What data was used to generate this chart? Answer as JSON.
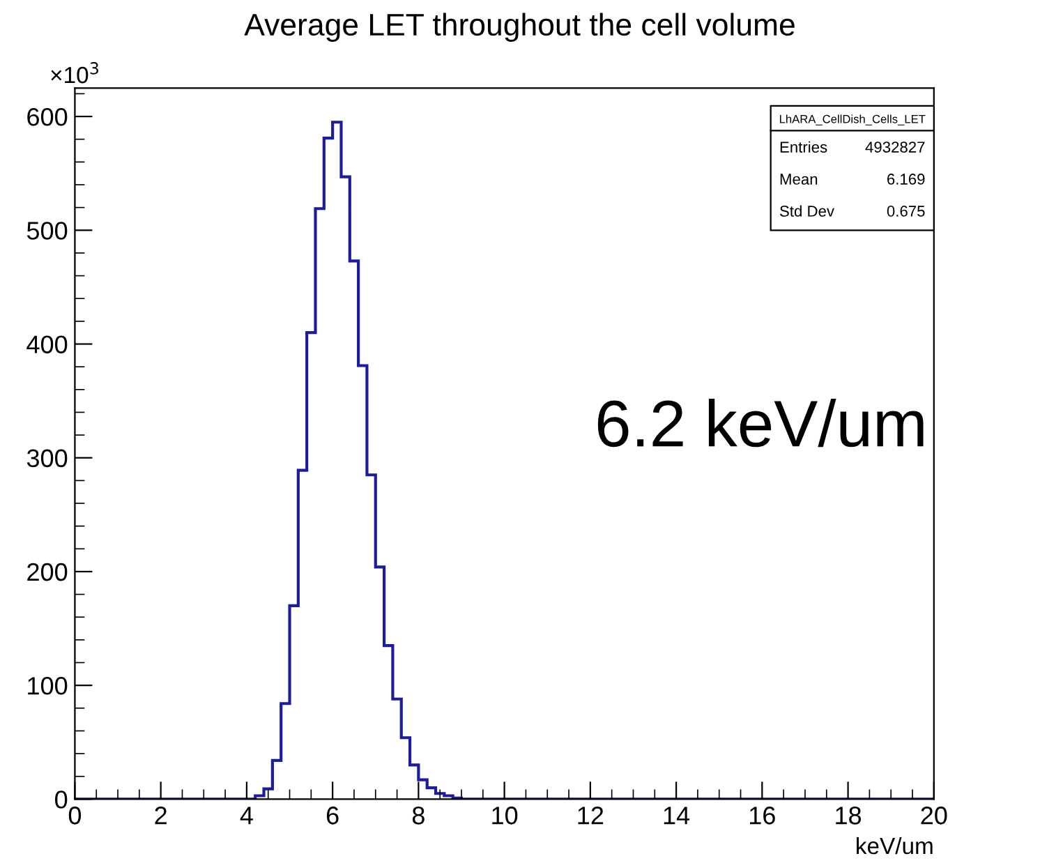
{
  "chart_data": {
    "type": "histogram",
    "title": "Average LET throughout the cell volume",
    "xlabel": "keV/um",
    "bins": [
      0,
      0.2,
      0.4,
      0.6,
      0.8,
      1,
      1.2,
      1.4,
      1.6,
      1.8,
      2,
      2.2,
      2.4,
      2.6,
      2.8,
      3,
      3.2,
      3.4,
      3.6,
      3.8,
      4,
      4.2,
      4.4,
      4.6,
      4.8,
      5,
      5.2,
      5.4,
      5.6,
      5.8,
      6,
      6.2,
      6.4,
      6.6,
      6.8,
      7,
      7.2,
      7.4,
      7.6,
      7.8,
      8,
      8.2,
      8.4,
      8.6,
      8.8,
      9,
      9.2,
      9.4,
      9.6,
      9.8,
      10,
      10.2,
      10.4,
      10.6,
      10.8,
      11,
      11.2,
      11.4,
      11.6,
      11.8,
      12,
      12.2,
      12.4,
      12.6,
      12.8,
      13,
      13.2,
      13.4,
      13.6,
      13.8,
      14,
      14.2,
      14.4,
      14.6,
      14.8,
      15,
      15.2,
      15.4,
      15.6,
      15.8,
      16,
      16.2,
      16.4,
      16.6,
      16.8,
      17,
      17.2,
      17.4,
      17.6,
      17.8,
      18,
      18.2,
      18.4,
      18.6,
      18.8,
      19,
      19.2,
      19.4,
      19.6,
      19.8,
      20
    ],
    "values": [
      0,
      0,
      0,
      0,
      0,
      0,
      0,
      0,
      0,
      0,
      0,
      0,
      0,
      0,
      0,
      0,
      0,
      0,
      0,
      0,
      0,
      3,
      9,
      34,
      84,
      170,
      289,
      410,
      519,
      581,
      595,
      547,
      473,
      381,
      285,
      204,
      135,
      88,
      54,
      30,
      17,
      10,
      5,
      3,
      1,
      0,
      0,
      0,
      0,
      0,
      0,
      0,
      0,
      0,
      0,
      0,
      0,
      0,
      0,
      0,
      0,
      0,
      0,
      0,
      0,
      0,
      0,
      0,
      0,
      0,
      0,
      0,
      0,
      0,
      0,
      0,
      0,
      0,
      0,
      0,
      0,
      0,
      0,
      0,
      0,
      0,
      0,
      0,
      0,
      0,
      0,
      0,
      0,
      0,
      0,
      0,
      0,
      0,
      0,
      0
    ],
    "color": "#1c1ca0",
    "xlim": [
      0,
      20
    ],
    "ylim": [
      0,
      625
    ],
    "xticks": [
      0,
      2,
      4,
      6,
      8,
      10,
      12,
      14,
      16,
      18,
      20
    ],
    "yticks": [
      0,
      100,
      200,
      300,
      400,
      500,
      600
    ],
    "grid": false,
    "legend": false,
    "annotations": [
      "×10$^{3}$",
      "LhARA_CellDish_Cells_LET",
      "Entries",
      "4932827",
      "Mean",
      "6.169",
      "Std Dev",
      "0.675",
      "6.2 keV/um"
    ]
  }
}
